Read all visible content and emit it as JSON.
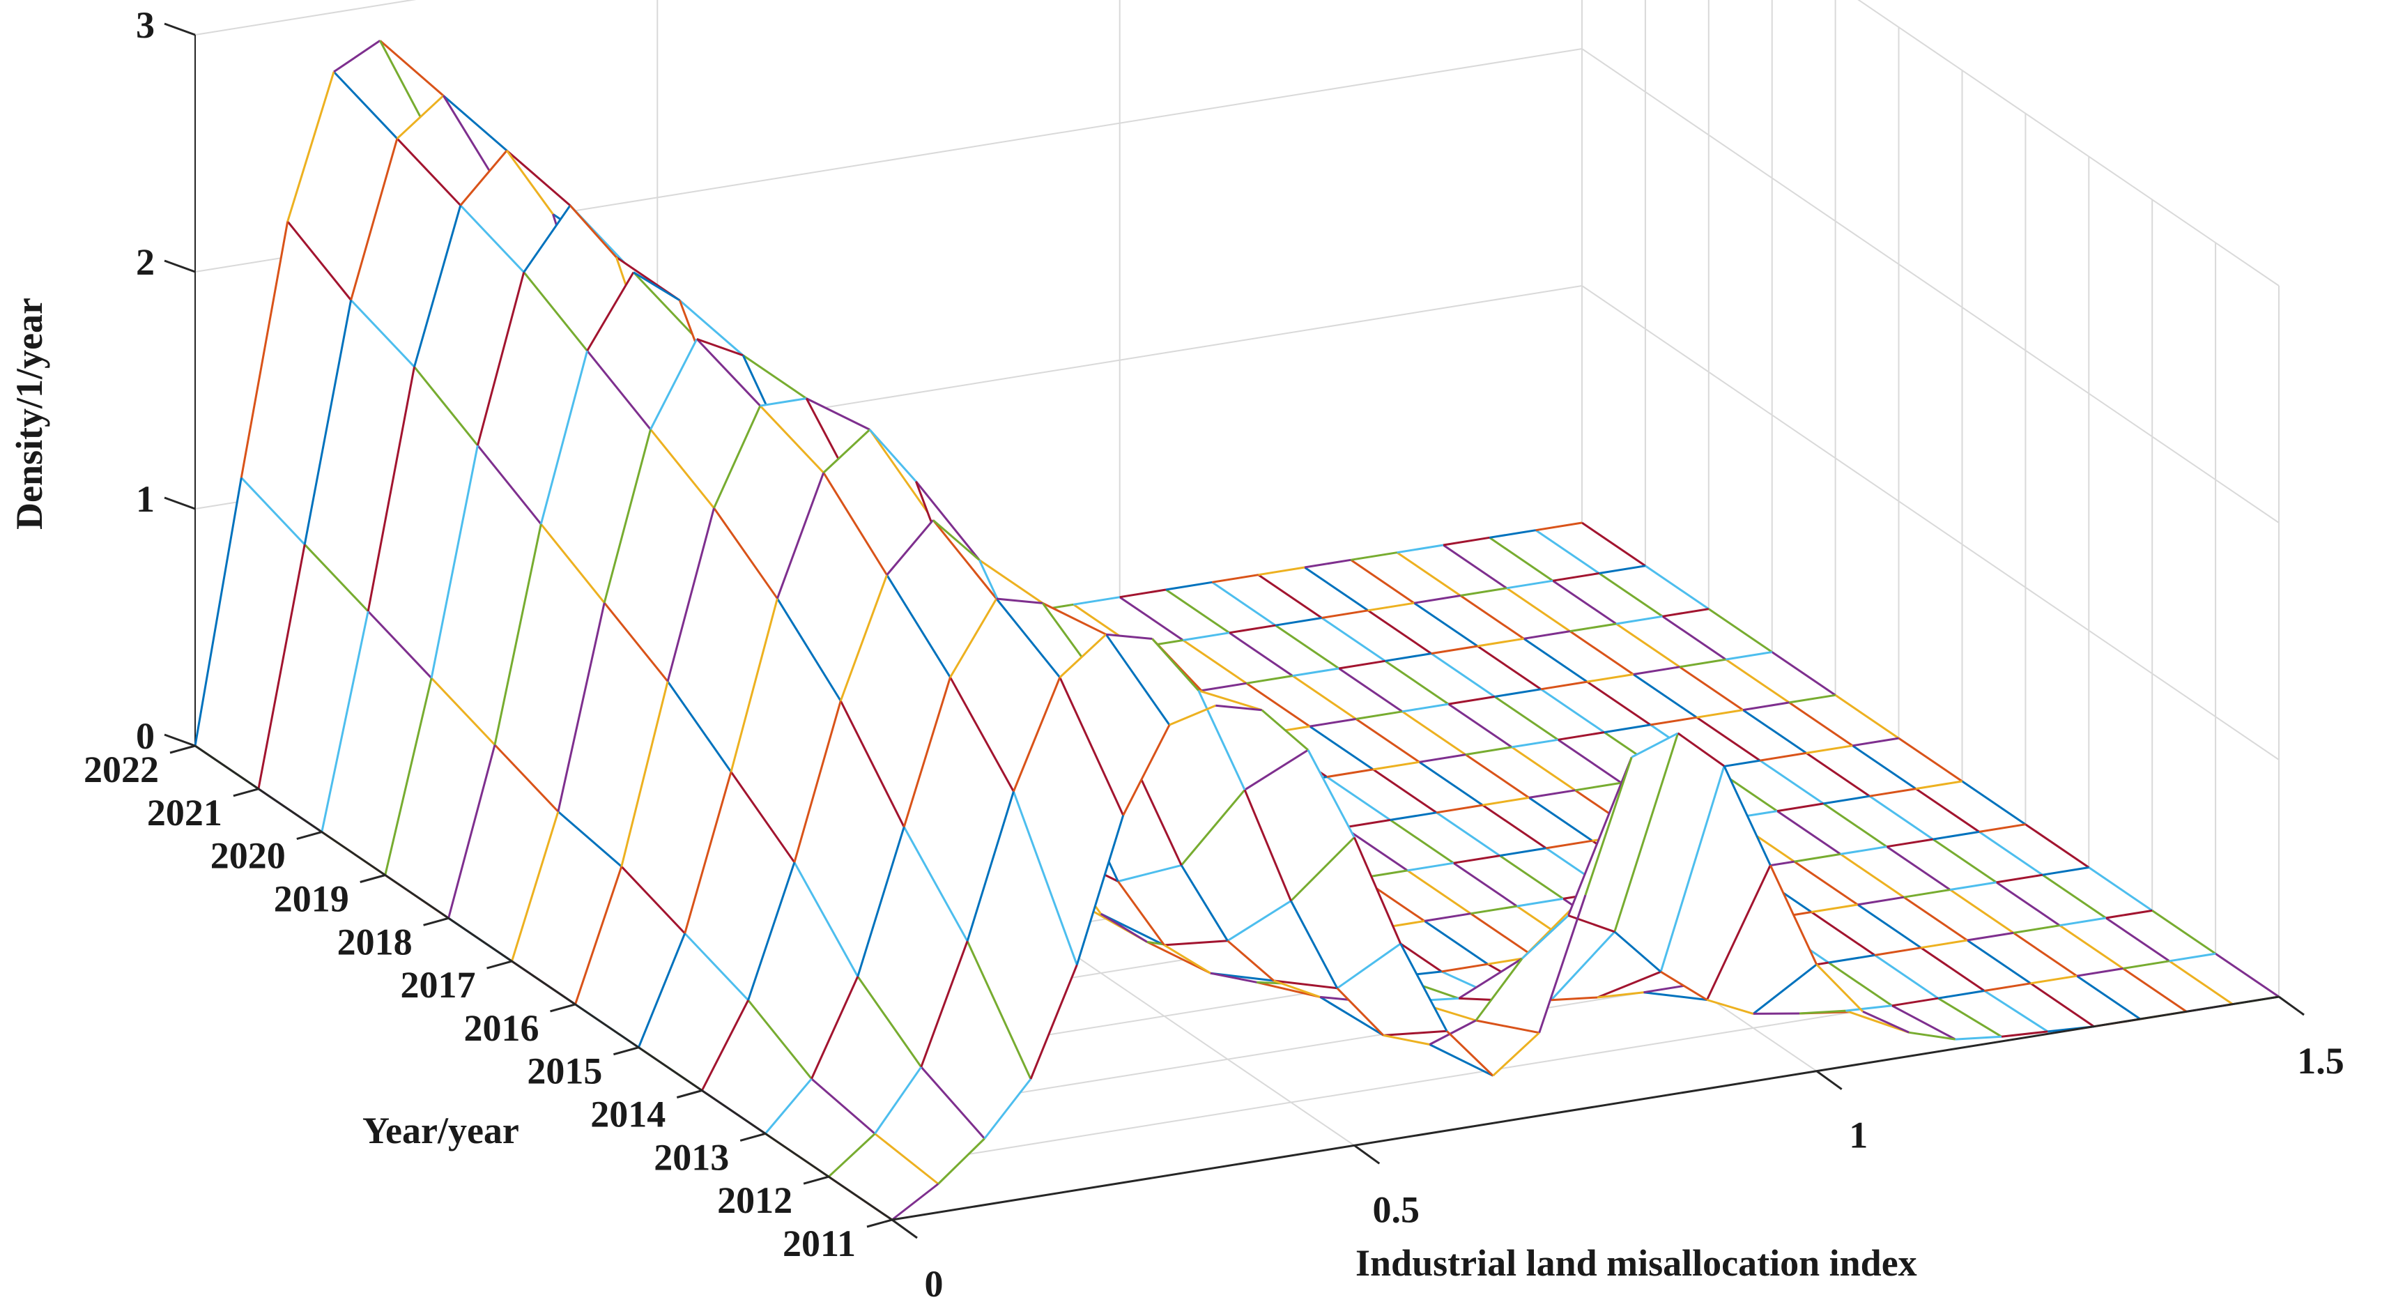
{
  "chart_data": {
    "type": "surface3d",
    "title": "",
    "xlabel": "Industrial land misallocation index",
    "ylabel": "Year/year",
    "zlabel": "Density/1/year",
    "xlim": [
      0,
      1.5
    ],
    "zlim": [
      0,
      3
    ],
    "x_ticks": [
      "0",
      "0.5",
      "1",
      "1.5"
    ],
    "y_ticks": [
      "2011",
      "2012",
      "2013",
      "2014",
      "2015",
      "2016",
      "2017",
      "2018",
      "2019",
      "2020",
      "2021",
      "2022"
    ],
    "z_ticks": [
      "0",
      "1",
      "2",
      "3"
    ],
    "x": [
      0,
      0.05,
      0.1,
      0.15,
      0.2,
      0.25,
      0.3,
      0.35,
      0.4,
      0.45,
      0.5,
      0.55,
      0.6,
      0.65,
      0.7,
      0.75,
      0.8,
      0.85,
      0.9,
      0.95,
      1.0,
      1.05,
      1.1,
      1.15,
      1.2,
      1.25,
      1.3,
      1.35,
      1.4,
      1.45,
      1.5
    ],
    "series": [
      {
        "name": "2011",
        "values": [
          0.0,
          0.12,
          0.28,
          0.5,
          0.95,
          1.55,
          1.9,
          1.95,
          1.9,
          1.7,
          1.3,
          0.82,
          0.42,
          0.2,
          0.35,
          0.9,
          1.45,
          1.52,
          1.35,
          0.9,
          0.45,
          0.22,
          0.1,
          0.04,
          0.02,
          0.01,
          0.0,
          0.0,
          0.0,
          0.0,
          0.0
        ]
      },
      {
        "name": "2012",
        "values": [
          0.0,
          0.15,
          0.4,
          0.9,
          1.5,
          1.95,
          2.1,
          2.05,
          1.8,
          1.35,
          0.85,
          0.45,
          0.22,
          0.15,
          0.22,
          0.45,
          0.6,
          0.5,
          0.3,
          0.15,
          0.06,
          0.03,
          0.01,
          0.0,
          0.0,
          0.0,
          0.0,
          0.0,
          0.0,
          0.0,
          0.0
        ]
      },
      {
        "name": "2013",
        "values": [
          0.0,
          0.2,
          0.6,
          1.2,
          1.8,
          2.1,
          2.05,
          1.75,
          1.3,
          0.85,
          0.5,
          0.3,
          0.2,
          0.15,
          0.12,
          0.1,
          0.06,
          0.03,
          0.01,
          0.0,
          0.0,
          0.0,
          0.0,
          0.0,
          0.0,
          0.0,
          0.0,
          0.0,
          0.0,
          0.0,
          0.0
        ]
      },
      {
        "name": "2014",
        "values": [
          0.0,
          0.35,
          0.9,
          1.55,
          2.05,
          2.25,
          2.05,
          1.6,
          1.05,
          0.6,
          0.3,
          0.15,
          0.08,
          0.04,
          0.02,
          0.01,
          0.0,
          0.0,
          0.0,
          0.0,
          0.0,
          0.0,
          0.0,
          0.0,
          0.0,
          0.0,
          0.0,
          0.0,
          0.0,
          0.0,
          0.0
        ]
      },
      {
        "name": "2015",
        "values": [
          0.0,
          0.45,
          1.1,
          1.8,
          2.3,
          2.45,
          2.2,
          1.65,
          1.05,
          0.55,
          0.25,
          0.1,
          0.04,
          0.02,
          0.01,
          0.0,
          0.0,
          0.0,
          0.0,
          0.0,
          0.0,
          0.0,
          0.0,
          0.0,
          0.0,
          0.0,
          0.0,
          0.0,
          0.0,
          0.0,
          0.0
        ]
      },
      {
        "name": "2016",
        "values": [
          0.0,
          0.55,
          1.3,
          2.0,
          2.4,
          2.4,
          2.0,
          1.45,
          0.85,
          0.42,
          0.18,
          0.07,
          0.03,
          0.01,
          0.0,
          0.0,
          0.0,
          0.0,
          0.0,
          0.0,
          0.0,
          0.0,
          0.0,
          0.0,
          0.0,
          0.0,
          0.0,
          0.0,
          0.0,
          0.0,
          0.0
        ]
      },
      {
        "name": "2017",
        "values": [
          0.0,
          0.6,
          1.45,
          2.15,
          2.5,
          2.4,
          1.95,
          1.35,
          0.78,
          0.38,
          0.15,
          0.05,
          0.02,
          0.0,
          0.0,
          0.0,
          0.0,
          0.0,
          0.0,
          0.0,
          0.0,
          0.0,
          0.0,
          0.0,
          0.0,
          0.0,
          0.0,
          0.0,
          0.0,
          0.0,
          0.0
        ]
      },
      {
        "name": "2018",
        "values": [
          0.0,
          0.7,
          1.6,
          2.3,
          2.6,
          2.45,
          1.9,
          1.25,
          0.7,
          0.32,
          0.12,
          0.04,
          0.01,
          0.0,
          0.0,
          0.0,
          0.0,
          0.0,
          0.0,
          0.0,
          0.0,
          0.0,
          0.0,
          0.0,
          0.0,
          0.0,
          0.0,
          0.0,
          0.0,
          0.0,
          0.0
        ]
      },
      {
        "name": "2019",
        "values": [
          0.0,
          0.8,
          1.75,
          2.45,
          2.7,
          2.45,
          1.85,
          1.15,
          0.6,
          0.26,
          0.09,
          0.03,
          0.01,
          0.0,
          0.0,
          0.0,
          0.0,
          0.0,
          0.0,
          0.0,
          0.0,
          0.0,
          0.0,
          0.0,
          0.0,
          0.0,
          0.0,
          0.0,
          0.0,
          0.0,
          0.0
        ]
      },
      {
        "name": "2020",
        "values": [
          0.0,
          0.9,
          1.9,
          2.55,
          2.75,
          2.45,
          1.8,
          1.1,
          0.55,
          0.22,
          0.07,
          0.02,
          0.0,
          0.0,
          0.0,
          0.0,
          0.0,
          0.0,
          0.0,
          0.0,
          0.0,
          0.0,
          0.0,
          0.0,
          0.0,
          0.0,
          0.0,
          0.0,
          0.0,
          0.0,
          0.0
        ]
      },
      {
        "name": "2021",
        "values": [
          0.0,
          1.0,
          2.0,
          2.65,
          2.8,
          2.45,
          1.75,
          1.05,
          0.5,
          0.2,
          0.06,
          0.02,
          0.0,
          0.0,
          0.0,
          0.0,
          0.0,
          0.0,
          0.0,
          0.0,
          0.0,
          0.0,
          0.0,
          0.0,
          0.0,
          0.0,
          0.0,
          0.0,
          0.0,
          0.0,
          0.0
        ]
      },
      {
        "name": "2022",
        "values": [
          0.0,
          1.1,
          2.15,
          2.75,
          2.85,
          2.45,
          1.7,
          1.0,
          0.47,
          0.18,
          0.05,
          0.01,
          0.0,
          0.0,
          0.0,
          0.0,
          0.0,
          0.0,
          0.0,
          0.0,
          0.0,
          0.0,
          0.0,
          0.0,
          0.0,
          0.0,
          0.0,
          0.0,
          0.0,
          0.0,
          0.0
        ]
      }
    ],
    "grid": true,
    "legend": "none"
  },
  "colors": {
    "mesh_palette": [
      "#0072BD",
      "#D95319",
      "#EDB120",
      "#7E2F8E",
      "#77AC30",
      "#4DBEEE",
      "#A2142F"
    ],
    "grid_line": "#d9d9d9",
    "axis_line": "#262626",
    "background": "#ffffff"
  }
}
